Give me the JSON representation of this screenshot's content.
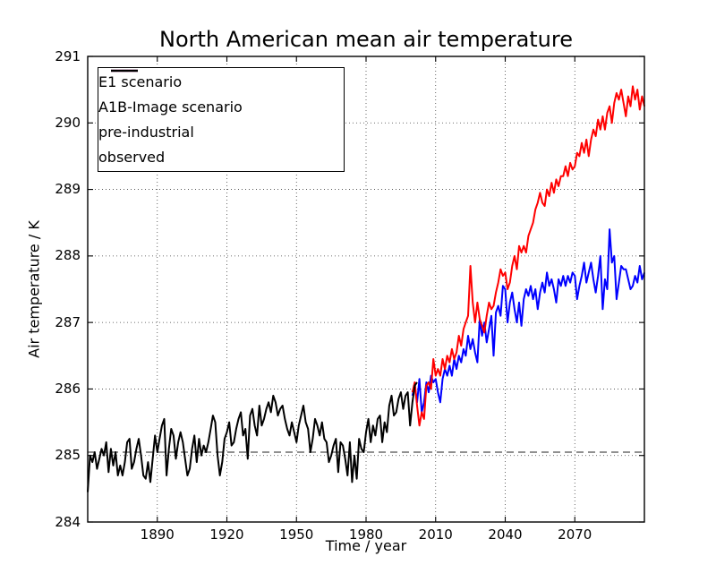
{
  "title": "North American mean air temperature",
  "legend": {
    "position": "upper left",
    "items": [
      {
        "label": "E1 scenario",
        "color": "#0000ff",
        "dash": "solid"
      },
      {
        "label": "A1B-Image scenario",
        "color": "#ff0000",
        "dash": "solid"
      },
      {
        "label": "pre-industrial",
        "color": "#808080",
        "dash": "dashed"
      },
      {
        "label": "observed",
        "color": "#000000",
        "dash": "solid"
      }
    ]
  },
  "chart_data": {
    "type": "line",
    "title": "North American mean air temperature",
    "xlabel": "Time / year",
    "ylabel": "Air temperature / K",
    "xlim": [
      1860,
      2100
    ],
    "ylim": [
      284,
      291
    ],
    "xticks": [
      1890,
      1920,
      1950,
      1980,
      2010,
      2040,
      2070
    ],
    "yticks": [
      284,
      285,
      286,
      287,
      288,
      289,
      290,
      291
    ],
    "grid": "dotted",
    "legend_position": "upper left",
    "series": [
      {
        "name": "E1 scenario",
        "color": "#0000ff",
        "linestyle": "solid",
        "x_start": 2000,
        "x_step": 1,
        "values": [
          285.9,
          286.05,
          285.8,
          286.15,
          285.65,
          285.8,
          286.1,
          285.95,
          286.2,
          286.1,
          286.15,
          285.95,
          285.8,
          286.15,
          286.3,
          286.2,
          286.35,
          286.2,
          286.45,
          286.3,
          286.5,
          286.4,
          286.6,
          286.5,
          286.8,
          286.6,
          286.75,
          286.55,
          286.4,
          287.05,
          286.8,
          287.0,
          286.7,
          286.9,
          287.1,
          286.5,
          287.15,
          287.25,
          287.1,
          287.55,
          287.5,
          287.0,
          287.3,
          287.45,
          287.2,
          287.0,
          287.3,
          286.95,
          287.35,
          287.5,
          287.4,
          287.55,
          287.35,
          287.5,
          287.2,
          287.45,
          287.6,
          287.45,
          287.75,
          287.55,
          287.65,
          287.5,
          287.3,
          287.65,
          287.55,
          287.7,
          287.55,
          287.7,
          287.6,
          287.75,
          287.7,
          287.35,
          287.55,
          287.7,
          287.9,
          287.6,
          287.75,
          287.9,
          287.65,
          287.45,
          287.7,
          288.0,
          287.2,
          287.65,
          287.5,
          288.4,
          287.9,
          288.0,
          287.35,
          287.6,
          287.85,
          287.8,
          287.8,
          287.65,
          287.5,
          287.55,
          287.7,
          287.6,
          287.85,
          287.65,
          287.75
        ]
      },
      {
        "name": "A1B-Image scenario",
        "color": "#ff0000",
        "linestyle": "solid",
        "x_start": 2000,
        "x_step": 1,
        "values": [
          285.95,
          286.1,
          285.75,
          285.45,
          285.65,
          285.55,
          286.05,
          286.1,
          286.0,
          286.45,
          286.2,
          286.3,
          286.2,
          286.45,
          286.3,
          286.5,
          286.4,
          286.6,
          286.45,
          286.55,
          286.8,
          286.65,
          286.9,
          287.0,
          287.1,
          287.85,
          287.3,
          287.0,
          287.3,
          287.05,
          286.95,
          286.85,
          287.1,
          287.3,
          287.2,
          287.25,
          287.45,
          287.6,
          287.8,
          287.7,
          287.75,
          287.5,
          287.6,
          287.85,
          288.0,
          287.8,
          288.15,
          288.05,
          288.15,
          288.05,
          288.3,
          288.4,
          288.5,
          288.7,
          288.8,
          288.95,
          288.8,
          288.75,
          289.0,
          288.9,
          289.1,
          288.95,
          289.15,
          289.05,
          289.2,
          289.2,
          289.35,
          289.2,
          289.4,
          289.3,
          289.35,
          289.55,
          289.5,
          289.7,
          289.55,
          289.75,
          289.5,
          289.75,
          289.9,
          289.8,
          290.05,
          289.9,
          290.1,
          289.9,
          290.15,
          290.25,
          290.0,
          290.3,
          290.45,
          290.35,
          290.5,
          290.3,
          290.1,
          290.4,
          290.25,
          290.55,
          290.35,
          290.5,
          290.2,
          290.4,
          290.25
        ]
      },
      {
        "name": "pre-industrial",
        "color": "#808080",
        "linestyle": "dashed",
        "x": [
          1860,
          2100
        ],
        "values": [
          285.05,
          285.05
        ]
      },
      {
        "name": "observed",
        "color": "#000000",
        "linestyle": "solid",
        "x_start": 1860,
        "x_step": 1,
        "values": [
          284.45,
          285.0,
          284.9,
          285.05,
          284.8,
          284.95,
          285.1,
          285.0,
          285.2,
          284.75,
          285.1,
          284.85,
          285.05,
          284.7,
          284.85,
          284.7,
          284.9,
          285.2,
          285.25,
          284.8,
          284.9,
          285.1,
          285.25,
          285.0,
          284.7,
          284.65,
          284.9,
          284.6,
          284.95,
          285.3,
          285.05,
          285.25,
          285.45,
          285.55,
          284.7,
          285.1,
          285.4,
          285.3,
          284.95,
          285.2,
          285.35,
          285.2,
          284.95,
          284.7,
          284.8,
          285.1,
          285.3,
          284.9,
          285.25,
          285.0,
          285.15,
          285.05,
          285.2,
          285.4,
          285.6,
          285.5,
          285.0,
          284.7,
          284.9,
          285.25,
          285.35,
          285.5,
          285.15,
          285.2,
          285.4,
          285.55,
          285.65,
          285.3,
          285.4,
          284.95,
          285.6,
          285.7,
          285.45,
          285.3,
          285.75,
          285.45,
          285.55,
          285.7,
          285.8,
          285.65,
          285.9,
          285.8,
          285.6,
          285.7,
          285.75,
          285.55,
          285.4,
          285.3,
          285.5,
          285.35,
          285.2,
          285.45,
          285.6,
          285.75,
          285.5,
          285.4,
          285.05,
          285.25,
          285.55,
          285.45,
          285.3,
          285.5,
          285.25,
          285.2,
          284.9,
          285.0,
          285.15,
          285.25,
          284.75,
          285.2,
          285.15,
          284.95,
          284.7,
          285.2,
          284.6,
          285.0,
          284.65,
          285.25,
          285.1,
          285.05,
          285.35,
          285.55,
          285.2,
          285.45,
          285.3,
          285.55,
          285.6,
          285.2,
          285.5,
          285.35,
          285.75,
          285.9,
          285.6,
          285.65,
          285.85,
          285.95,
          285.7,
          285.9,
          285.95,
          285.45,
          285.8,
          286.05,
          286.1
        ]
      }
    ]
  }
}
